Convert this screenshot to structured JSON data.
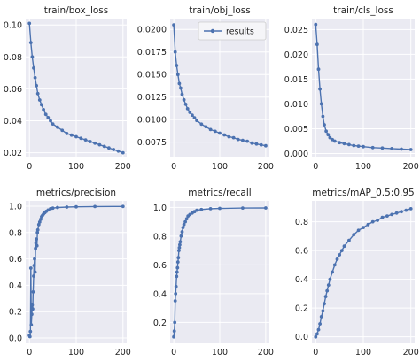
{
  "chart_data": [
    {
      "type": "line",
      "title": "train/box_loss",
      "xlim": [
        -8,
        208
      ],
      "ylim": [
        0.017,
        0.104
      ],
      "xticks": [
        0,
        100,
        200
      ],
      "xtick_labels": [
        "0",
        "100",
        "200"
      ],
      "yticks": [
        0.02,
        0.04,
        0.06,
        0.08,
        0.1
      ],
      "ytick_labels": [
        "0.02",
        "0.04",
        "0.06",
        "0.08",
        "0.10"
      ],
      "grid": true,
      "legend": null,
      "series": [
        {
          "points": [
            [
              0,
              0.101
            ],
            [
              3,
              0.089
            ],
            [
              6,
              0.08
            ],
            [
              9,
              0.073
            ],
            [
              12,
              0.067
            ],
            [
              15,
              0.062
            ],
            [
              18,
              0.057
            ],
            [
              22,
              0.053
            ],
            [
              26,
              0.05
            ],
            [
              30,
              0.047
            ],
            [
              35,
              0.044
            ],
            [
              40,
              0.042
            ],
            [
              45,
              0.04
            ],
            [
              50,
              0.038
            ],
            [
              60,
              0.036
            ],
            [
              70,
              0.034
            ],
            [
              80,
              0.032
            ],
            [
              90,
              0.031
            ],
            [
              100,
              0.03
            ],
            [
              110,
              0.029
            ],
            [
              120,
              0.028
            ],
            [
              130,
              0.027
            ],
            [
              140,
              0.026
            ],
            [
              150,
              0.025
            ],
            [
              160,
              0.024
            ],
            [
              170,
              0.023
            ],
            [
              180,
              0.022
            ],
            [
              190,
              0.021
            ],
            [
              200,
              0.02
            ]
          ]
        }
      ]
    },
    {
      "type": "line",
      "title": "train/obj_loss",
      "xlim": [
        -8,
        208
      ],
      "ylim": [
        0.0058,
        0.0212
      ],
      "xticks": [
        0,
        100,
        200
      ],
      "xtick_labels": [
        "0",
        "100",
        "200"
      ],
      "yticks": [
        0.0075,
        0.01,
        0.0125,
        0.015,
        0.0175,
        0.02
      ],
      "ytick_labels": [
        "0.0075",
        "0.0100",
        "0.0125",
        "0.0150",
        "0.0175",
        "0.0200"
      ],
      "grid": true,
      "legend": "top-right",
      "series": [
        {
          "name": "results",
          "points": [
            [
              0,
              0.0205
            ],
            [
              3,
              0.0175
            ],
            [
              6,
              0.016
            ],
            [
              9,
              0.015
            ],
            [
              12,
              0.014
            ],
            [
              15,
              0.0135
            ],
            [
              18,
              0.0128
            ],
            [
              22,
              0.0122
            ],
            [
              26,
              0.0117
            ],
            [
              30,
              0.0112
            ],
            [
              35,
              0.0108
            ],
            [
              40,
              0.0105
            ],
            [
              45,
              0.0102
            ],
            [
              50,
              0.0099
            ],
            [
              60,
              0.0095
            ],
            [
              70,
              0.0092
            ],
            [
              80,
              0.0089
            ],
            [
              90,
              0.0087
            ],
            [
              100,
              0.0085
            ],
            [
              110,
              0.0083
            ],
            [
              120,
              0.0081
            ],
            [
              130,
              0.008
            ],
            [
              140,
              0.0078
            ],
            [
              150,
              0.0077
            ],
            [
              160,
              0.0076
            ],
            [
              170,
              0.0074
            ],
            [
              180,
              0.0073
            ],
            [
              190,
              0.0072
            ],
            [
              200,
              0.0071
            ]
          ]
        }
      ]
    },
    {
      "type": "line",
      "title": "train/cls_loss",
      "xlim": [
        -8,
        208
      ],
      "ylim": [
        -0.0008,
        0.0272
      ],
      "xticks": [
        0,
        100,
        200
      ],
      "xtick_labels": [
        "0",
        "100",
        "200"
      ],
      "yticks": [
        0.0,
        0.005,
        0.01,
        0.015,
        0.02,
        0.025
      ],
      "ytick_labels": [
        "0.000",
        "0.005",
        "0.010",
        "0.015",
        "0.020",
        "0.025"
      ],
      "grid": true,
      "legend": null,
      "series": [
        {
          "points": [
            [
              0,
              0.026
            ],
            [
              3,
              0.022
            ],
            [
              6,
              0.017
            ],
            [
              9,
              0.013
            ],
            [
              12,
              0.01
            ],
            [
              15,
              0.0075
            ],
            [
              18,
              0.0058
            ],
            [
              22,
              0.0045
            ],
            [
              26,
              0.0038
            ],
            [
              30,
              0.0032
            ],
            [
              35,
              0.0028
            ],
            [
              40,
              0.0025
            ],
            [
              50,
              0.0022
            ],
            [
              60,
              0.002
            ],
            [
              70,
              0.0018
            ],
            [
              80,
              0.0016
            ],
            [
              90,
              0.0015
            ],
            [
              100,
              0.0014
            ],
            [
              120,
              0.0012
            ],
            [
              140,
              0.0011
            ],
            [
              160,
              0.001
            ],
            [
              180,
              0.0009
            ],
            [
              200,
              0.0008
            ]
          ]
        }
      ]
    },
    {
      "type": "line",
      "title": "metrics/precision",
      "xlim": [
        -8,
        208
      ],
      "ylim": [
        -0.04,
        1.04
      ],
      "xticks": [
        0,
        100,
        200
      ],
      "xtick_labels": [
        "0",
        "100",
        "200"
      ],
      "yticks": [
        0.0,
        0.2,
        0.4,
        0.6,
        0.8,
        1.0
      ],
      "ytick_labels": [
        "0.0",
        "0.2",
        "0.4",
        "0.6",
        "0.8",
        "1.0"
      ],
      "grid": true,
      "legend": null,
      "series": [
        {
          "points": [
            [
              0,
              0.02
            ],
            [
              1,
              0.01
            ],
            [
              2,
              0.05
            ],
            [
              3,
              0.53
            ],
            [
              4,
              0.1
            ],
            [
              5,
              0.18
            ],
            [
              6,
              0.25
            ],
            [
              7,
              0.22
            ],
            [
              8,
              0.35
            ],
            [
              9,
              0.47
            ],
            [
              10,
              0.55
            ],
            [
              11,
              0.6
            ],
            [
              12,
              0.5
            ],
            [
              13,
              0.68
            ],
            [
              14,
              0.72
            ],
            [
              15,
              0.75
            ],
            [
              16,
              0.7
            ],
            [
              17,
              0.8
            ],
            [
              18,
              0.82
            ],
            [
              20,
              0.86
            ],
            [
              22,
              0.88
            ],
            [
              24,
              0.9
            ],
            [
              26,
              0.92
            ],
            [
              28,
              0.93
            ],
            [
              30,
              0.94
            ],
            [
              33,
              0.95
            ],
            [
              36,
              0.96
            ],
            [
              40,
              0.97
            ],
            [
              45,
              0.98
            ],
            [
              50,
              0.985
            ],
            [
              60,
              0.99
            ],
            [
              80,
              0.993
            ],
            [
              100,
              0.995
            ],
            [
              140,
              0.997
            ],
            [
              200,
              0.998
            ]
          ]
        }
      ]
    },
    {
      "type": "line",
      "title": "metrics/recall",
      "xlim": [
        -8,
        208
      ],
      "ylim": [
        0.055,
        1.045
      ],
      "xticks": [
        0,
        100,
        200
      ],
      "xtick_labels": [
        "0",
        "100",
        "200"
      ],
      "yticks": [
        0.2,
        0.4,
        0.6,
        0.8,
        1.0
      ],
      "ytick_labels": [
        "0.2",
        "0.4",
        "0.6",
        "0.8",
        "1.0"
      ],
      "grid": true,
      "legend": null,
      "series": [
        {
          "points": [
            [
              0,
              0.1
            ],
            [
              1,
              0.14
            ],
            [
              2,
              0.2
            ],
            [
              3,
              0.35
            ],
            [
              4,
              0.4
            ],
            [
              5,
              0.45
            ],
            [
              6,
              0.52
            ],
            [
              7,
              0.55
            ],
            [
              8,
              0.58
            ],
            [
              9,
              0.62
            ],
            [
              10,
              0.65
            ],
            [
              11,
              0.7
            ],
            [
              12,
              0.72
            ],
            [
              13,
              0.74
            ],
            [
              14,
              0.76
            ],
            [
              16,
              0.8
            ],
            [
              18,
              0.83
            ],
            [
              20,
              0.86
            ],
            [
              22,
              0.88
            ],
            [
              25,
              0.9
            ],
            [
              28,
              0.92
            ],
            [
              31,
              0.94
            ],
            [
              35,
              0.95
            ],
            [
              40,
              0.96
            ],
            [
              45,
              0.97
            ],
            [
              50,
              0.98
            ],
            [
              60,
              0.985
            ],
            [
              80,
              0.99
            ],
            [
              100,
              0.993
            ],
            [
              150,
              0.995
            ],
            [
              200,
              0.996
            ]
          ]
        }
      ]
    },
    {
      "type": "line",
      "title": "metrics/mAP_0.5:0.95",
      "xlim": [
        -8,
        208
      ],
      "ylim": [
        -0.045,
        0.945
      ],
      "xticks": [
        0,
        100,
        200
      ],
      "xtick_labels": [
        "0",
        "100",
        "200"
      ],
      "yticks": [
        0.0,
        0.2,
        0.4,
        0.6,
        0.8
      ],
      "ytick_labels": [
        "0.0",
        "0.2",
        "0.4",
        "0.6",
        "0.8"
      ],
      "grid": true,
      "legend": null,
      "series": [
        {
          "points": [
            [
              0,
              0.0
            ],
            [
              3,
              0.02
            ],
            [
              6,
              0.05
            ],
            [
              9,
              0.09
            ],
            [
              12,
              0.14
            ],
            [
              15,
              0.18
            ],
            [
              18,
              0.23
            ],
            [
              21,
              0.28
            ],
            [
              24,
              0.32
            ],
            [
              27,
              0.36
            ],
            [
              30,
              0.4
            ],
            [
              35,
              0.45
            ],
            [
              40,
              0.5
            ],
            [
              45,
              0.54
            ],
            [
              50,
              0.57
            ],
            [
              55,
              0.6
            ],
            [
              60,
              0.63
            ],
            [
              70,
              0.67
            ],
            [
              80,
              0.71
            ],
            [
              90,
              0.74
            ],
            [
              100,
              0.76
            ],
            [
              110,
              0.78
            ],
            [
              120,
              0.8
            ],
            [
              130,
              0.81
            ],
            [
              140,
              0.83
            ],
            [
              150,
              0.84
            ],
            [
              160,
              0.85
            ],
            [
              170,
              0.86
            ],
            [
              180,
              0.87
            ],
            [
              190,
              0.88
            ],
            [
              200,
              0.89
            ]
          ]
        }
      ]
    }
  ],
  "style": {
    "plot_background": "#eaeaf2",
    "grid_color": "#ffffff",
    "series_color": "#4c72b0"
  }
}
